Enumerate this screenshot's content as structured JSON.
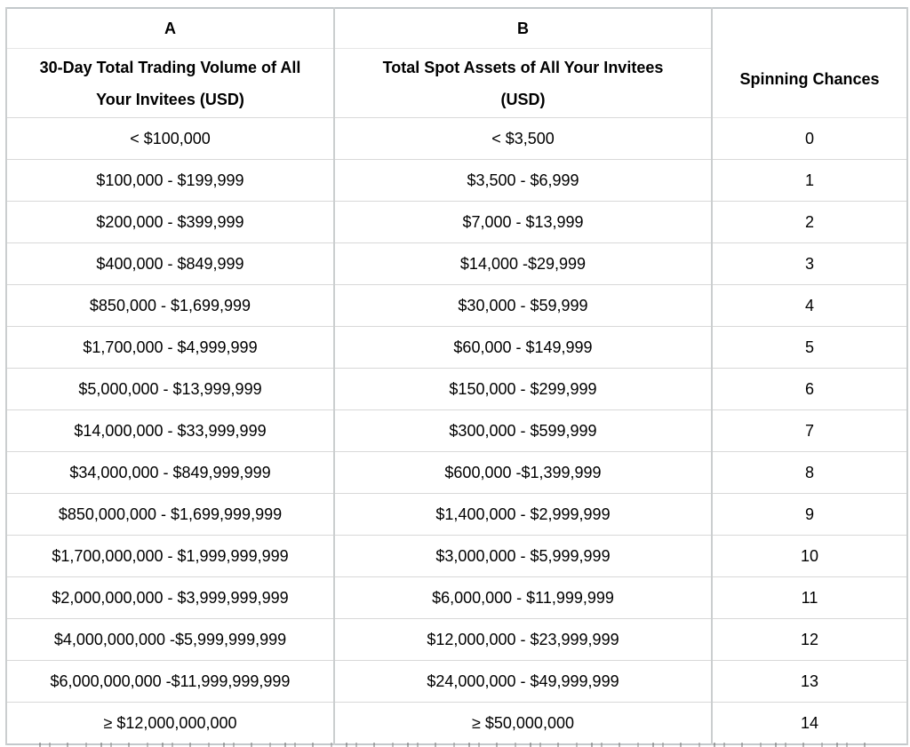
{
  "table": {
    "header": {
      "col_a_letter": "A",
      "col_b_letter": "B",
      "col_a_title_lines": [
        "30-Day Total Trading Volume of All",
        "Your Invitees (USD)"
      ],
      "col_b_title_lines": [
        "Total Spot Assets of All Your Invitees",
        "(USD)"
      ],
      "col_c_title": "Spinning Chances"
    },
    "rows": [
      {
        "volume": "< $100,000",
        "assets": "< $3,500",
        "chances": "0"
      },
      {
        "volume": "$100,000 - $199,999",
        "assets": "$3,500 - $6,999",
        "chances": "1"
      },
      {
        "volume": "$200,000 - $399,999",
        "assets": "$7,000 - $13,999",
        "chances": "2"
      },
      {
        "volume": "$400,000 - $849,999",
        "assets": "$14,000 -$29,999",
        "chances": "3"
      },
      {
        "volume": "$850,000 - $1,699,999",
        "assets": "$30,000 - $59,999",
        "chances": "4"
      },
      {
        "volume": "$1,700,000 - $4,999,999",
        "assets": "$60,000 - $149,999",
        "chances": "5"
      },
      {
        "volume": "$5,000,000 - $13,999,999",
        "assets": "$150,000 - $299,999",
        "chances": "6"
      },
      {
        "volume": "$14,000,000 - $33,999,999",
        "assets": "$300,000 - $599,999",
        "chances": "7"
      },
      {
        "volume": "$34,000,000 - $849,999,999",
        "assets": "$600,000 -$1,399,999",
        "chances": "8"
      },
      {
        "volume": "$850,000,000 - $1,699,999,999",
        "assets": "$1,400,000 - $2,999,999",
        "chances": "9"
      },
      {
        "volume": "$1,700,000,000 - $1,999,999,999",
        "assets": "$3,000,000 - $5,999,999",
        "chances": "10"
      },
      {
        "volume": "$2,000,000,000 - $3,999,999,999",
        "assets": "$6,000,000 - $11,999,999",
        "chances": "11"
      },
      {
        "volume": "$4,000,000,000 -$5,999,999,999",
        "assets": "$12,000,000 - $23,999,999",
        "chances": "12"
      },
      {
        "volume": "$6,000,000,000 -$11,999,999,999",
        "assets": "$24,000,000 - $49,999,999",
        "chances": "13"
      },
      {
        "volume": "≥ $12,000,000,000",
        "assets": "≥ $50,000,000",
        "chances": "14"
      }
    ]
  },
  "colors": {
    "background": "#ffffff",
    "text": "#000000",
    "border_outer": "#c3c8cb",
    "border_vertical": "#cbcecf",
    "border_horizontal": "#d8d8d8"
  }
}
